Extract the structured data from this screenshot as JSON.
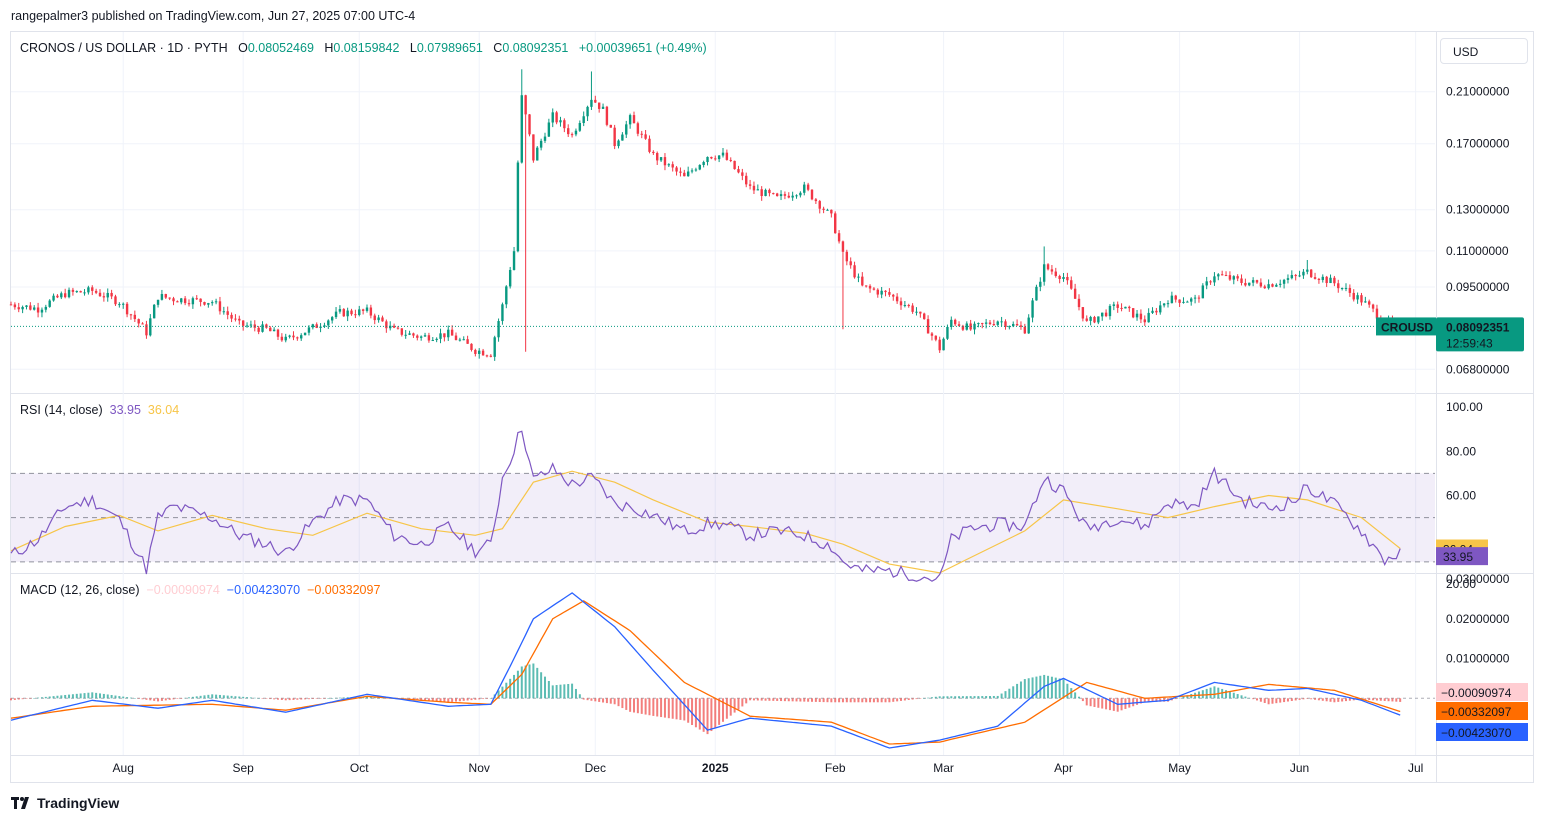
{
  "publisher": "rangepalmer3 published on TradingView.com, Jun 27, 2025 07:00 UTC-4",
  "currency": "USD",
  "brand": "TradingView",
  "colors": {
    "up": "#089981",
    "down": "#f23645",
    "rsi": "#7e57c2",
    "rsi_ma": "#f7c548",
    "macd": "#2962ff",
    "signal": "#ff6d00",
    "hist_pos": "#26a69a",
    "hist_neg": "#ef5350"
  },
  "header": {
    "symbol": "CRONOS / US DOLLAR · 1D · PYTH",
    "o_label": "O",
    "o": "0.08052469",
    "h_label": "H",
    "h": "0.08159842",
    "l_label": "L",
    "l": "0.07989651",
    "c_label": "C",
    "c": "0.08092351",
    "change": "+0.00039651 (+0.49%)"
  },
  "price_badge": {
    "ticker": "CROUSD",
    "price": "0.08092351",
    "countdown": "12:59:43"
  },
  "rsi_legend": {
    "title": "RSI (14, close)",
    "rsi": "33.95",
    "ma": "36.04"
  },
  "macd_legend": {
    "title": "MACD (12, 26, close)",
    "hist": "−0.00090974",
    "macd": "−0.00423070",
    "signal": "−0.00332097"
  },
  "chart_data": [
    {
      "type": "candlestick",
      "panel": "price",
      "y_ticks": [
        "0.21000000",
        "0.17000000",
        "0.13000000",
        "0.11000000",
        "0.09500000",
        "0.06800000"
      ],
      "y_tick_values": [
        0.21,
        0.17,
        0.13,
        0.11,
        0.095,
        0.068
      ],
      "y_scale": "log",
      "ylim": [
        0.062,
        0.235
      ],
      "x_ticks": [
        "Aug",
        "Sep",
        "Oct",
        "Nov",
        "Dec",
        "2025",
        "Feb",
        "Mar",
        "Apr",
        "May",
        "Jun",
        "Jul"
      ],
      "x_tick_dates": [
        "2024-08-01",
        "2024-09-01",
        "2024-10-01",
        "2024-11-01",
        "2024-12-01",
        "2025-01-01",
        "2025-02-01",
        "2025-03-01",
        "2025-04-01",
        "2025-05-01",
        "2025-06-01",
        "2025-07-01"
      ],
      "x_range": [
        "2024-07-03",
        "2025-07-06"
      ],
      "close_path": [
        [
          "2024-07-03",
          0.0885
        ],
        [
          "2024-07-10",
          0.087
        ],
        [
          "2024-07-17",
          0.0925
        ],
        [
          "2024-07-24",
          0.0935
        ],
        [
          "2024-07-31",
          0.0895
        ],
        [
          "2024-08-07",
          0.079
        ],
        [
          "2024-08-10",
          0.0915
        ],
        [
          "2024-08-14",
          0.0905
        ],
        [
          "2024-08-24",
          0.0895
        ],
        [
          "2024-08-31",
          0.0815
        ],
        [
          "2024-09-07",
          0.08
        ],
        [
          "2024-09-12",
          0.0765
        ],
        [
          "2024-09-19",
          0.0805
        ],
        [
          "2024-09-26",
          0.0855
        ],
        [
          "2024-10-03",
          0.086
        ],
        [
          "2024-10-10",
          0.0795
        ],
        [
          "2024-10-17",
          0.0775
        ],
        [
          "2024-10-24",
          0.0785
        ],
        [
          "2024-10-31",
          0.0735
        ],
        [
          "2024-11-04",
          0.0725
        ],
        [
          "2024-11-07",
          0.088
        ],
        [
          "2024-11-10",
          0.11
        ],
        [
          "2024-11-12",
          0.205
        ],
        [
          "2024-11-15",
          0.16
        ],
        [
          "2024-11-20",
          0.19
        ],
        [
          "2024-11-25",
          0.176
        ],
        [
          "2024-11-30",
          0.205
        ],
        [
          "2024-12-03",
          0.195
        ],
        [
          "2024-12-06",
          0.17
        ],
        [
          "2024-12-10",
          0.188
        ],
        [
          "2024-12-16",
          0.162
        ],
        [
          "2024-12-24",
          0.148
        ],
        [
          "2024-12-30",
          0.162
        ],
        [
          "2025-01-03",
          0.162
        ],
        [
          "2025-01-10",
          0.142
        ],
        [
          "2025-01-17",
          0.136
        ],
        [
          "2025-01-24",
          0.142
        ],
        [
          "2025-01-31",
          0.126
        ],
        [
          "2025-02-03",
          0.108
        ],
        [
          "2025-02-08",
          0.095
        ],
        [
          "2025-02-15",
          0.092
        ],
        [
          "2025-02-22",
          0.086
        ],
        [
          "2025-02-28",
          0.074
        ],
        [
          "2025-03-03",
          0.083
        ],
        [
          "2025-03-08",
          0.08
        ],
        [
          "2025-03-15",
          0.083
        ],
        [
          "2025-03-22",
          0.08
        ],
        [
          "2025-03-27",
          0.103
        ],
        [
          "2025-04-01",
          0.099
        ],
        [
          "2025-04-07",
          0.082
        ],
        [
          "2025-04-15",
          0.088
        ],
        [
          "2025-04-22",
          0.083
        ],
        [
          "2025-04-28",
          0.0905
        ],
        [
          "2025-05-05",
          0.09
        ],
        [
          "2025-05-10",
          0.1
        ],
        [
          "2025-05-17",
          0.097
        ],
        [
          "2025-05-24",
          0.096
        ],
        [
          "2025-05-31",
          0.099
        ],
        [
          "2025-06-03",
          0.101
        ],
        [
          "2025-06-10",
          0.0965
        ],
        [
          "2025-06-17",
          0.09
        ],
        [
          "2025-06-23",
          0.0825
        ],
        [
          "2025-06-27",
          0.0809
        ]
      ],
      "wick_extremes": [
        [
          "2024-11-12",
          0.23
        ],
        [
          "2024-11-30",
          0.228
        ],
        [
          "2024-11-13",
          0.073
        ],
        [
          "2025-02-03",
          0.08
        ],
        [
          "2025-03-27",
          0.112
        ],
        [
          "2025-06-03",
          0.106
        ]
      ]
    },
    {
      "type": "line",
      "panel": "rsi",
      "y_ticks": [
        "100.00",
        "80.00",
        "60.00",
        "20.00"
      ],
      "y_tick_values": [
        100,
        80,
        60,
        20
      ],
      "ylim": [
        20,
        100
      ],
      "band": [
        30,
        70
      ],
      "midline": 50,
      "series": [
        {
          "name": "RSI",
          "values": [
            [
              "2024-07-03",
              33
            ],
            [
              "2024-07-10",
              40
            ],
            [
              "2024-07-17",
              55
            ],
            [
              "2024-07-24",
              58
            ],
            [
              "2024-07-31",
              49
            ],
            [
              "2024-08-07",
              27
            ],
            [
              "2024-08-10",
              50
            ],
            [
              "2024-08-14",
              55
            ],
            [
              "2024-08-24",
              50
            ],
            [
              "2024-08-31",
              42
            ],
            [
              "2024-09-07",
              38
            ],
            [
              "2024-09-12",
              34
            ],
            [
              "2024-09-19",
              48
            ],
            [
              "2024-09-26",
              58
            ],
            [
              "2024-10-03",
              58
            ],
            [
              "2024-10-10",
              42
            ],
            [
              "2024-10-17",
              38
            ],
            [
              "2024-10-24",
              46
            ],
            [
              "2024-10-31",
              35
            ],
            [
              "2024-11-04",
              38
            ],
            [
              "2024-11-07",
              68
            ],
            [
              "2024-11-10",
              81
            ],
            [
              "2024-11-12",
              91
            ],
            [
              "2024-11-15",
              67
            ],
            [
              "2024-11-20",
              72
            ],
            [
              "2024-11-25",
              65
            ],
            [
              "2024-11-30",
              68
            ],
            [
              "2024-12-03",
              63
            ],
            [
              "2024-12-06",
              56
            ],
            [
              "2024-12-10",
              55
            ],
            [
              "2024-12-16",
              51
            ],
            [
              "2024-12-24",
              44
            ],
            [
              "2024-12-30",
              47
            ],
            [
              "2025-01-03",
              47
            ],
            [
              "2025-01-10",
              42
            ],
            [
              "2025-01-17",
              44
            ],
            [
              "2025-01-24",
              42
            ],
            [
              "2025-01-31",
              37
            ],
            [
              "2025-02-03",
              30
            ],
            [
              "2025-02-08",
              26
            ],
            [
              "2025-02-15",
              26
            ],
            [
              "2025-02-22",
              24
            ],
            [
              "2025-02-28",
              22
            ],
            [
              "2025-03-03",
              40
            ],
            [
              "2025-03-08",
              45
            ],
            [
              "2025-03-15",
              47
            ],
            [
              "2025-03-22",
              46
            ],
            [
              "2025-03-27",
              68
            ],
            [
              "2025-04-01",
              62
            ],
            [
              "2025-04-07",
              45
            ],
            [
              "2025-04-15",
              50
            ],
            [
              "2025-04-22",
              46
            ],
            [
              "2025-04-28",
              57
            ],
            [
              "2025-05-05",
              55
            ],
            [
              "2025-05-10",
              70
            ],
            [
              "2025-05-17",
              58
            ],
            [
              "2025-05-24",
              54
            ],
            [
              "2025-05-31",
              58
            ],
            [
              "2025-06-03",
              64
            ],
            [
              "2025-06-10",
              56
            ],
            [
              "2025-06-17",
              44
            ],
            [
              "2025-06-23",
              31
            ],
            [
              "2025-06-27",
              33.95
            ]
          ]
        },
        {
          "name": "RSI MA",
          "values": [
            [
              "2024-07-03",
              35
            ],
            [
              "2024-07-17",
              46
            ],
            [
              "2024-07-31",
              51
            ],
            [
              "2024-08-10",
              44
            ],
            [
              "2024-08-24",
              51
            ],
            [
              "2024-09-07",
              45
            ],
            [
              "2024-09-19",
              42
            ],
            [
              "2024-10-03",
              52
            ],
            [
              "2024-10-17",
              45
            ],
            [
              "2024-10-31",
              42
            ],
            [
              "2024-11-07",
              45
            ],
            [
              "2024-11-15",
              66
            ],
            [
              "2024-11-25",
              71
            ],
            [
              "2024-12-06",
              66
            ],
            [
              "2024-12-16",
              58
            ],
            [
              "2024-12-30",
              48
            ],
            [
              "2025-01-10",
              46
            ],
            [
              "2025-01-24",
              43
            ],
            [
              "2025-02-03",
              38
            ],
            [
              "2025-02-15",
              29
            ],
            [
              "2025-02-28",
              25
            ],
            [
              "2025-03-08",
              32
            ],
            [
              "2025-03-22",
              44
            ],
            [
              "2025-04-01",
              58
            ],
            [
              "2025-04-15",
              54
            ],
            [
              "2025-04-28",
              50
            ],
            [
              "2025-05-10",
              55
            ],
            [
              "2025-05-24",
              60
            ],
            [
              "2025-06-03",
              58
            ],
            [
              "2025-06-17",
              50
            ],
            [
              "2025-06-27",
              36.04
            ]
          ]
        }
      ]
    },
    {
      "type": "line",
      "panel": "macd",
      "y_ticks": [
        "0.03000000",
        "0.02000000",
        "0.01000000"
      ],
      "y_tick_values": [
        0.03,
        0.02,
        0.01
      ],
      "ylim": [
        -0.0135,
        0.031
      ],
      "series": [
        {
          "name": "MACD",
          "values": [
            [
              "2024-07-03",
              -0.0055
            ],
            [
              "2024-07-24",
              -0.0005
            ],
            [
              "2024-08-10",
              -0.0025
            ],
            [
              "2024-08-24",
              -0.0005
            ],
            [
              "2024-09-12",
              -0.0035
            ],
            [
              "2024-10-03",
              0.001
            ],
            [
              "2024-10-24",
              -0.002
            ],
            [
              "2024-11-04",
              -0.0015
            ],
            [
              "2024-11-10",
              0.01
            ],
            [
              "2024-11-15",
              0.02
            ],
            [
              "2024-11-25",
              0.0265
            ],
            [
              "2024-12-06",
              0.018
            ],
            [
              "2024-12-16",
              0.007
            ],
            [
              "2024-12-30",
              -0.008
            ],
            [
              "2025-01-10",
              -0.005
            ],
            [
              "2025-01-31",
              -0.007
            ],
            [
              "2025-02-15",
              -0.0125
            ],
            [
              "2025-02-28",
              -0.0105
            ],
            [
              "2025-03-15",
              -0.007
            ],
            [
              "2025-03-27",
              0.003
            ],
            [
              "2025-04-01",
              0.005
            ],
            [
              "2025-04-15",
              -0.0015
            ],
            [
              "2025-04-28",
              -0.0005
            ],
            [
              "2025-05-10",
              0.004
            ],
            [
              "2025-05-24",
              0.002
            ],
            [
              "2025-06-03",
              0.0025
            ],
            [
              "2025-06-17",
              -0.0005
            ],
            [
              "2025-06-27",
              -0.0042307
            ]
          ]
        },
        {
          "name": "Signal",
          "values": [
            [
              "2024-07-03",
              -0.005
            ],
            [
              "2024-07-24",
              -0.002
            ],
            [
              "2024-08-24",
              -0.0015
            ],
            [
              "2024-09-12",
              -0.003
            ],
            [
              "2024-10-03",
              0.0005
            ],
            [
              "2024-10-24",
              -0.001
            ],
            [
              "2024-11-04",
              -0.0015
            ],
            [
              "2024-11-12",
              0.006
            ],
            [
              "2024-11-20",
              0.02
            ],
            [
              "2024-11-28",
              0.0245
            ],
            [
              "2024-12-10",
              0.017
            ],
            [
              "2024-12-24",
              0.004
            ],
            [
              "2025-01-10",
              -0.0045
            ],
            [
              "2025-01-31",
              -0.006
            ],
            [
              "2025-02-15",
              -0.0115
            ],
            [
              "2025-02-28",
              -0.011
            ],
            [
              "2025-03-22",
              -0.006
            ],
            [
              "2025-04-07",
              0.004
            ],
            [
              "2025-04-22",
              0.0
            ],
            [
              "2025-05-10",
              0.001
            ],
            [
              "2025-05-24",
              0.0035
            ],
            [
              "2025-06-10",
              0.002
            ],
            [
              "2025-06-27",
              -0.00332097
            ]
          ]
        }
      ]
    }
  ]
}
